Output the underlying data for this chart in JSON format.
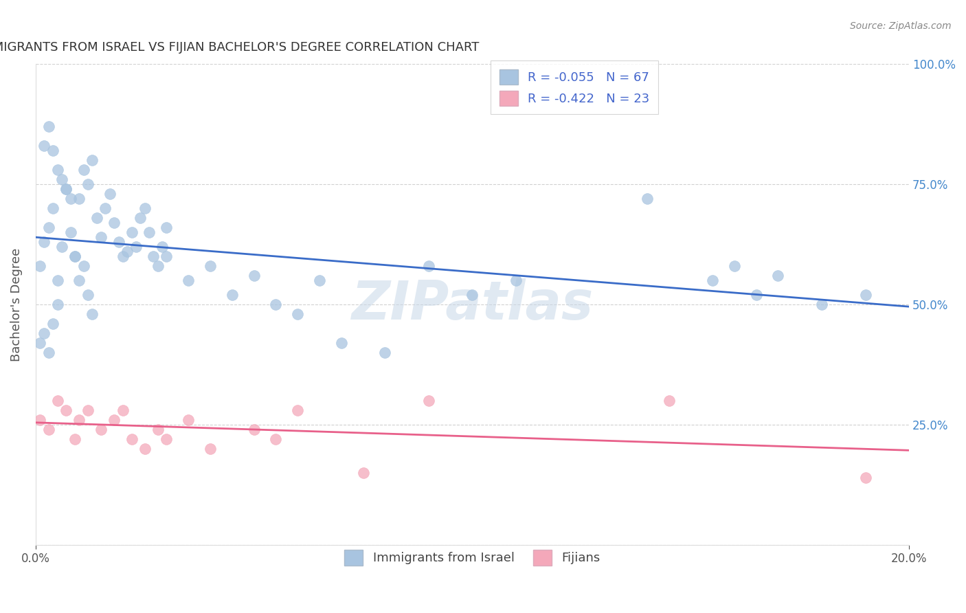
{
  "title": "IMMIGRANTS FROM ISRAEL VS FIJIAN BACHELOR'S DEGREE CORRELATION CHART",
  "source": "Source: ZipAtlas.com",
  "ylabel": "Bachelor's Degree",
  "xlim": [
    0.0,
    0.2
  ],
  "ylim": [
    0.0,
    1.0
  ],
  "legend_label1": "R = -0.055   N = 67",
  "legend_label2": "R = -0.422   N = 23",
  "legend_bottom_label1": "Immigrants from Israel",
  "legend_bottom_label2": "Fijians",
  "blue_color": "#A8C4E0",
  "pink_color": "#F4A8BA",
  "blue_line_color": "#3A6CC8",
  "pink_line_color": "#E8608A",
  "watermark": "ZIPatlas",
  "background_color": "#FFFFFF",
  "grid_color": "#CCCCCC",
  "blue_dots_x": [
    0.001,
    0.002,
    0.003,
    0.004,
    0.005,
    0.006,
    0.007,
    0.008,
    0.009,
    0.01,
    0.011,
    0.012,
    0.013,
    0.014,
    0.015,
    0.016,
    0.017,
    0.018,
    0.019,
    0.02,
    0.021,
    0.022,
    0.023,
    0.024,
    0.025,
    0.026,
    0.027,
    0.028,
    0.029,
    0.03,
    0.002,
    0.003,
    0.004,
    0.005,
    0.006,
    0.007,
    0.008,
    0.009,
    0.01,
    0.011,
    0.012,
    0.013,
    0.001,
    0.002,
    0.003,
    0.004,
    0.005,
    0.03,
    0.035,
    0.04,
    0.045,
    0.05,
    0.055,
    0.06,
    0.065,
    0.07,
    0.08,
    0.09,
    0.1,
    0.11,
    0.14,
    0.155,
    0.16,
    0.165,
    0.17,
    0.18,
    0.19
  ],
  "blue_dots_y": [
    0.58,
    0.63,
    0.66,
    0.7,
    0.55,
    0.62,
    0.74,
    0.65,
    0.6,
    0.72,
    0.78,
    0.75,
    0.8,
    0.68,
    0.64,
    0.7,
    0.73,
    0.67,
    0.63,
    0.6,
    0.61,
    0.65,
    0.62,
    0.68,
    0.7,
    0.65,
    0.6,
    0.58,
    0.62,
    0.66,
    0.83,
    0.87,
    0.82,
    0.78,
    0.76,
    0.74,
    0.72,
    0.6,
    0.55,
    0.58,
    0.52,
    0.48,
    0.42,
    0.44,
    0.4,
    0.46,
    0.5,
    0.6,
    0.55,
    0.58,
    0.52,
    0.56,
    0.5,
    0.48,
    0.55,
    0.42,
    0.4,
    0.58,
    0.52,
    0.55,
    0.72,
    0.55,
    0.58,
    0.52,
    0.56,
    0.5,
    0.52
  ],
  "pink_dots_x": [
    0.001,
    0.003,
    0.005,
    0.007,
    0.009,
    0.01,
    0.012,
    0.015,
    0.018,
    0.02,
    0.022,
    0.025,
    0.028,
    0.03,
    0.035,
    0.04,
    0.05,
    0.055,
    0.06,
    0.075,
    0.09,
    0.145,
    0.19
  ],
  "pink_dots_y": [
    0.26,
    0.24,
    0.3,
    0.28,
    0.22,
    0.26,
    0.28,
    0.24,
    0.26,
    0.28,
    0.22,
    0.2,
    0.24,
    0.22,
    0.26,
    0.2,
    0.24,
    0.22,
    0.28,
    0.15,
    0.3,
    0.3,
    0.14
  ]
}
